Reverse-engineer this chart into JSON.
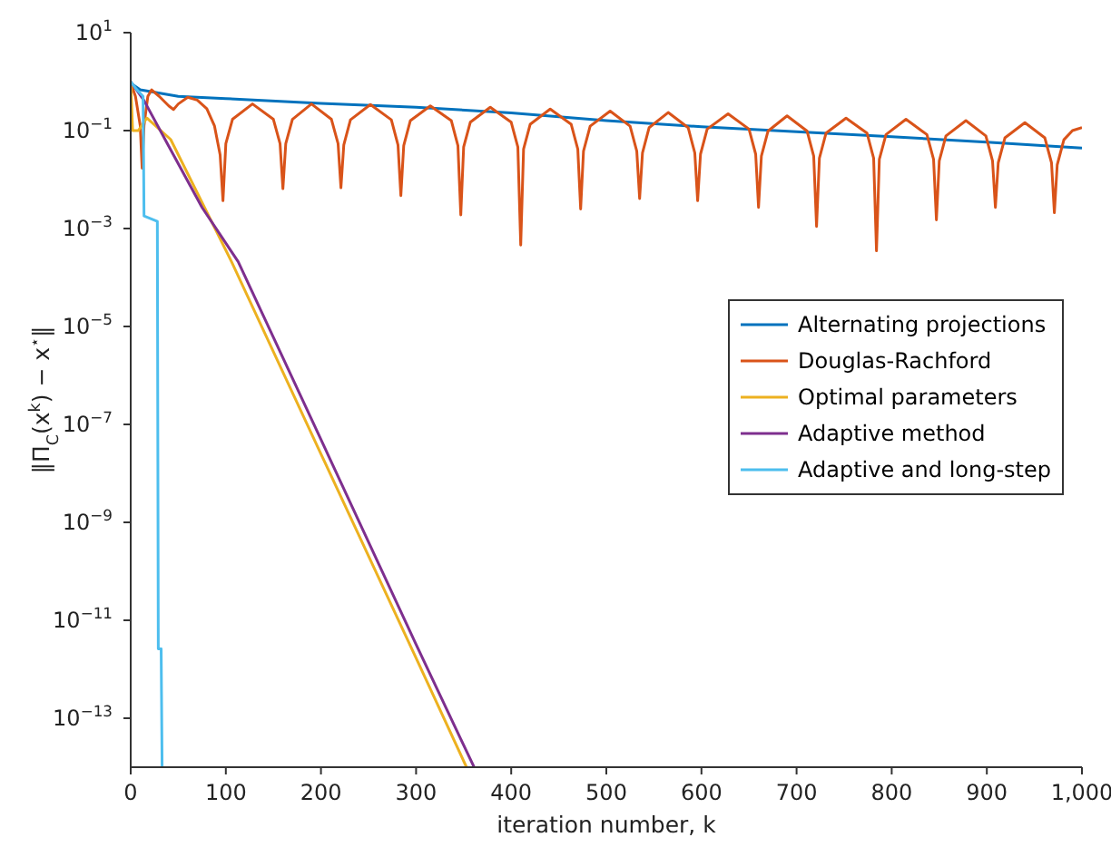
{
  "chart_data": {
    "type": "line",
    "xlabel": "iteration number, k",
    "ylabel": "‖Π$_{C}$(x$^{k}$) − x$^{⋆}$‖",
    "log": "y",
    "grid": false,
    "legend": "right",
    "marker": "none",
    "line_style": "solid",
    "xlim": [
      0,
      1000
    ],
    "xticks": [
      0,
      100,
      200,
      300,
      400,
      500,
      600,
      700,
      800,
      900,
      {
        "value": 1000,
        "label": "1,000"
      }
    ],
    "ylim": [
      1e-14,
      10
    ],
    "yticks": [
      {
        "value": 10,
        "label": "10$^{1}$"
      },
      {
        "value": 0.1,
        "label": "10$^{−1}$"
      },
      {
        "value": 0.001,
        "label": "10$^{−3}$"
      },
      {
        "value": 1e-05,
        "label": "10$^{−5}$"
      },
      {
        "value": 1e-07,
        "label": "10$^{−7}$"
      },
      {
        "value": 1e-09,
        "label": "10$^{−9}$"
      },
      {
        "value": 1e-11,
        "label": "10$^{−11}$"
      },
      {
        "value": 1e-13,
        "label": "10$^{−13}$"
      }
    ],
    "series": [
      {
        "name": "Alternating projections",
        "color": "#0072bd",
        "x": [
          0,
          10,
          50,
          100,
          200,
          300,
          400,
          500,
          600,
          700,
          800,
          900,
          1000
        ],
        "values": [
          0.93,
          0.68,
          0.5,
          0.45,
          0.36,
          0.3,
          0.23,
          0.16,
          0.12,
          0.095,
          0.075,
          0.058,
          0.044
        ]
      },
      {
        "name": "Douglas-Rachford",
        "color": "#d95319",
        "x": [
          0,
          5,
          10,
          12,
          14,
          18,
          22,
          30,
          40,
          45,
          50,
          60,
          70,
          80,
          88,
          94,
          97,
          100,
          107,
          128,
          150,
          157,
          160,
          163,
          170,
          190,
          211,
          218,
          221,
          224,
          231,
          252,
          274,
          281,
          284,
          287,
          294,
          315,
          337,
          344,
          347,
          350,
          357,
          378,
          400,
          407,
          410,
          413,
          420,
          441,
          463,
          470,
          473,
          476,
          483,
          504,
          525,
          532,
          535,
          538,
          545,
          565,
          586,
          593,
          596,
          599,
          606,
          628,
          650,
          657,
          660,
          663,
          670,
          690,
          711,
          718,
          721,
          724,
          731,
          752,
          774,
          781,
          784,
          787,
          794,
          815,
          837,
          844,
          847,
          850,
          857,
          878,
          899,
          906,
          909,
          912,
          919,
          940,
          961,
          968,
          971,
          974,
          981,
          990,
          1000
        ],
        "values": [
          0.95,
          0.5,
          0.126,
          0.017,
          0.126,
          0.5,
          0.68,
          0.5,
          0.32,
          0.27,
          0.35,
          0.48,
          0.42,
          0.28,
          0.126,
          0.032,
          0.0037,
          0.054,
          0.17,
          0.35,
          0.17,
          0.054,
          0.0065,
          0.054,
          0.17,
          0.35,
          0.17,
          0.054,
          0.0068,
          0.051,
          0.166,
          0.34,
          0.166,
          0.051,
          0.0047,
          0.049,
          0.16,
          0.32,
          0.16,
          0.049,
          0.0019,
          0.046,
          0.148,
          0.3,
          0.148,
          0.046,
          0.00046,
          0.042,
          0.135,
          0.275,
          0.135,
          0.042,
          0.0025,
          0.038,
          0.123,
          0.25,
          0.123,
          0.038,
          0.0041,
          0.035,
          0.115,
          0.234,
          0.115,
          0.035,
          0.0037,
          0.033,
          0.107,
          0.22,
          0.107,
          0.033,
          0.0027,
          0.03,
          0.098,
          0.2,
          0.098,
          0.03,
          0.0011,
          0.0275,
          0.089,
          0.18,
          0.089,
          0.0275,
          0.00035,
          0.026,
          0.083,
          0.17,
          0.083,
          0.026,
          0.0015,
          0.024,
          0.078,
          0.16,
          0.078,
          0.024,
          0.0027,
          0.022,
          0.071,
          0.145,
          0.071,
          0.022,
          0.0021,
          0.02,
          0.065,
          0.1,
          0.115
        ]
      },
      {
        "name": "Optimal parameters",
        "color": "#edb120",
        "x": [
          0,
          2,
          8,
          17,
          42,
          106,
          200,
          300,
          353
        ],
        "values": [
          1.0,
          0.1,
          0.1,
          0.18,
          0.066,
          0.00021,
          2.5e-08,
          1.7e-12,
          1e-14
        ]
      },
      {
        "name": "Adaptive method",
        "color": "#7e2f8e",
        "x": [
          0,
          14,
          40,
          75,
          113,
          200,
          300,
          361
        ],
        "values": [
          1.0,
          0.41,
          0.048,
          0.0027,
          0.00021,
          4.9e-08,
          3.2e-12,
          1e-14
        ]
      },
      {
        "name": "Adaptive and long-step",
        "color": "#4dbeee",
        "x": [
          0,
          6,
          13,
          14,
          28,
          29,
          32,
          33
        ],
        "values": [
          1.0,
          0.7,
          0.5,
          0.0018,
          0.0014,
          2.6e-12,
          2.6e-12,
          1e-14
        ]
      }
    ]
  }
}
